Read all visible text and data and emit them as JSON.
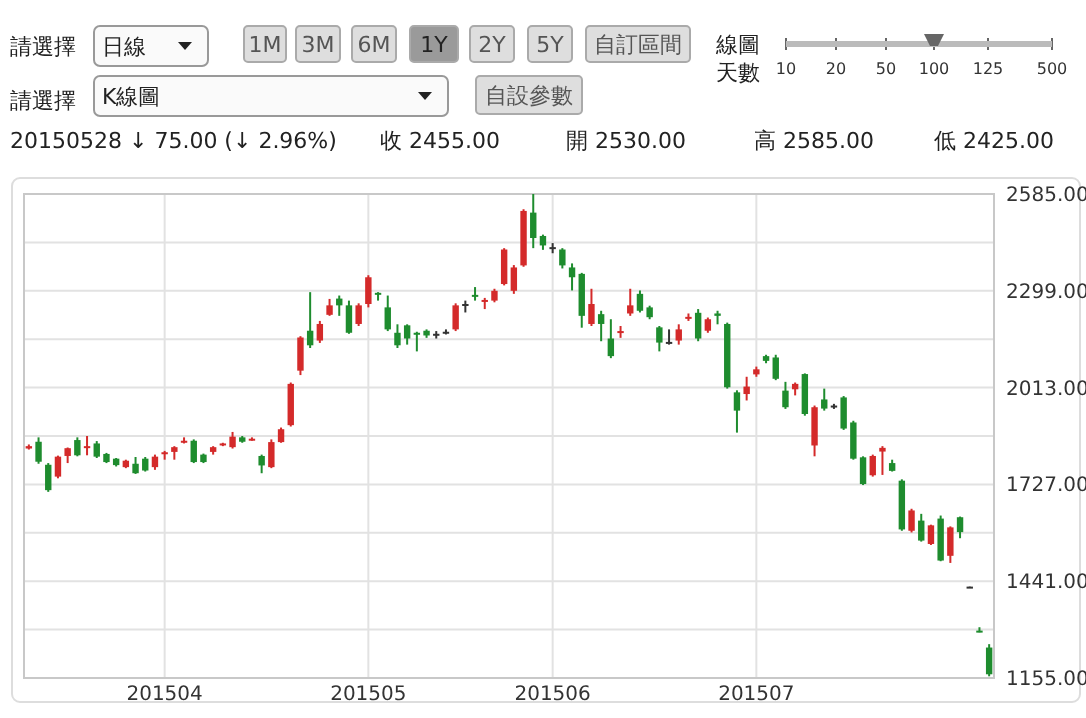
{
  "chart_data": {
    "type": "candlestick",
    "subtitle": "20150528 ↓ 75.00 (↓ 2.96%)",
    "annotations": [
      "請選擇",
      "日線",
      "1M",
      "3M",
      "6M",
      "1Y",
      "2Y",
      "5Y",
      "自訂區間",
      "線圖",
      "天數",
      "10",
      "20",
      "50",
      "100",
      "125",
      "500",
      "請選擇",
      "K線圖",
      "自設參數",
      "收 2455.00",
      "開 2530.00",
      "高 2585.00",
      "低 2425.00"
    ],
    "categories": [
      null,
      null,
      null,
      null,
      null,
      null,
      null,
      null,
      null,
      null,
      null,
      null,
      null,
      null,
      "201504",
      null,
      null,
      null,
      null,
      null,
      null,
      null,
      null,
      null,
      null,
      null,
      null,
      null,
      null,
      null,
      null,
      null,
      null,
      null,
      null,
      "201505",
      null,
      null,
      null,
      null,
      null,
      null,
      null,
      null,
      null,
      null,
      null,
      null,
      null,
      null,
      null,
      null,
      null,
      null,
      "201506",
      null,
      null,
      null,
      null,
      null,
      null,
      null,
      null,
      null,
      null,
      null,
      null,
      null,
      null,
      null,
      null,
      null,
      null,
      null,
      null,
      "201507",
      null,
      null,
      null,
      null,
      null,
      null,
      null,
      null,
      null,
      null,
      null,
      null,
      null,
      null,
      null,
      null,
      null,
      null,
      null,
      null,
      null,
      null,
      null,
      null
    ],
    "ohlc": [
      [
        1833,
        1845,
        1830,
        1840
      ],
      [
        1853,
        1866,
        1788,
        1794
      ],
      [
        1785,
        1790,
        1705,
        1710
      ],
      [
        1750,
        1812,
        1745,
        1809
      ],
      [
        1811,
        1836,
        1790,
        1834
      ],
      [
        1858,
        1866,
        1810,
        1813
      ],
      [
        1835,
        1870,
        1813,
        1840
      ],
      [
        1848,
        1855,
        1805,
        1809
      ],
      [
        1817,
        1820,
        1790,
        1793
      ],
      [
        1803,
        1805,
        1780,
        1784
      ],
      [
        1778,
        1800,
        1775,
        1797
      ],
      [
        1788,
        1808,
        1758,
        1760
      ],
      [
        1803,
        1808,
        1765,
        1768
      ],
      [
        1778,
        1815,
        1770,
        1809
      ],
      [
        1817,
        1826,
        1800,
        1822
      ],
      [
        1823,
        1840,
        1800,
        1837
      ],
      [
        1850,
        1866,
        1848,
        1856
      ],
      [
        1856,
        1860,
        1790,
        1793
      ],
      [
        1815,
        1818,
        1790,
        1793
      ],
      [
        1823,
        1840,
        1815,
        1837
      ],
      [
        1843,
        1850,
        1840,
        1848
      ],
      [
        1837,
        1882,
        1833,
        1868
      ],
      [
        1866,
        1870,
        1850,
        1853
      ],
      [
        1858,
        1866,
        1856,
        1862
      ],
      [
        1811,
        1815,
        1760,
        1783
      ],
      [
        1778,
        1860,
        1775,
        1852
      ],
      [
        1852,
        1895,
        1850,
        1890
      ],
      [
        1902,
        2028,
        1898,
        2024
      ],
      [
        2063,
        2165,
        2050,
        2161
      ],
      [
        2181,
        2295,
        2130,
        2138
      ],
      [
        2152,
        2210,
        2145,
        2201
      ],
      [
        2228,
        2275,
        2225,
        2256
      ],
      [
        2276,
        2285,
        2225,
        2256
      ],
      [
        2256,
        2270,
        2172,
        2175
      ],
      [
        2201,
        2262,
        2195,
        2256
      ],
      [
        2260,
        2345,
        2250,
        2339
      ],
      [
        2293,
        2295,
        2270,
        2289
      ],
      [
        2250,
        2285,
        2180,
        2185
      ],
      [
        2175,
        2200,
        2130,
        2138
      ],
      [
        2197,
        2200,
        2140,
        2158
      ],
      [
        2175,
        2178,
        2120,
        2170
      ],
      [
        2181,
        2185,
        2160,
        2167
      ],
      [
        2172,
        2180,
        2158,
        2172
      ],
      [
        2178,
        2185,
        2170,
        2176
      ],
      [
        2185,
        2262,
        2180,
        2256
      ],
      [
        2260,
        2270,
        2235,
        2260
      ],
      [
        2287,
        2310,
        2270,
        2283
      ],
      [
        2268,
        2278,
        2245,
        2272
      ],
      [
        2270,
        2305,
        2265,
        2299
      ],
      [
        2319,
        2425,
        2315,
        2421
      ],
      [
        2299,
        2375,
        2290,
        2368
      ],
      [
        2374,
        2540,
        2370,
        2535
      ],
      [
        2530,
        2585,
        2425,
        2455
      ],
      [
        2461,
        2465,
        2420,
        2433
      ],
      [
        2428,
        2440,
        2410,
        2426
      ],
      [
        2421,
        2425,
        2365,
        2374
      ],
      [
        2368,
        2380,
        2300,
        2339
      ],
      [
        2349,
        2352,
        2190,
        2225
      ],
      [
        2201,
        2305,
        2195,
        2260
      ],
      [
        2230,
        2240,
        2150,
        2201
      ],
      [
        2158,
        2215,
        2100,
        2106
      ],
      [
        2175,
        2195,
        2160,
        2180
      ],
      [
        2232,
        2305,
        2225,
        2256
      ],
      [
        2290,
        2300,
        2235,
        2240
      ],
      [
        2250,
        2255,
        2215,
        2221
      ],
      [
        2191,
        2195,
        2120,
        2146
      ],
      [
        2148,
        2185,
        2140,
        2146
      ],
      [
        2152,
        2200,
        2140,
        2185
      ],
      [
        2218,
        2232,
        2210,
        2222
      ],
      [
        2234,
        2245,
        2150,
        2158
      ],
      [
        2181,
        2220,
        2175,
        2215
      ],
      [
        2232,
        2240,
        2200,
        2225
      ],
      [
        2201,
        2205,
        2010,
        2014
      ],
      [
        1999,
        2005,
        1880,
        1945
      ],
      [
        1994,
        2045,
        1975,
        2016
      ],
      [
        2052,
        2075,
        2045,
        2067
      ],
      [
        2106,
        2110,
        2085,
        2092
      ],
      [
        2102,
        2110,
        2035,
        2039
      ],
      [
        2004,
        2030,
        1950,
        1955
      ],
      [
        2008,
        2028,
        1990,
        2024
      ],
      [
        2053,
        2055,
        1930,
        1935
      ],
      [
        1842,
        1960,
        1810,
        1955
      ],
      [
        1978,
        2010,
        1945,
        1951
      ],
      [
        1960,
        1965,
        1950,
        1958
      ],
      [
        1984,
        1988,
        1888,
        1892
      ],
      [
        1910,
        1915,
        1800,
        1803
      ],
      [
        1807,
        1810,
        1725,
        1728
      ],
      [
        1754,
        1815,
        1750,
        1811
      ],
      [
        1824,
        1840,
        1755,
        1835
      ],
      [
        1790,
        1800,
        1765,
        1767
      ],
      [
        1738,
        1742,
        1590,
        1594
      ],
      [
        1590,
        1655,
        1585,
        1650
      ],
      [
        1620,
        1640,
        1558,
        1561
      ],
      [
        1551,
        1608,
        1548,
        1606
      ],
      [
        1626,
        1635,
        1500,
        1502
      ],
      [
        1516,
        1603,
        1495,
        1600
      ],
      [
        1630,
        1632,
        1568,
        1586
      ],
      [
        1425,
        1425,
        1421,
        1421
      ],
      [
        1295,
        1305,
        1290,
        1292
      ],
      [
        1245,
        1255,
        1160,
        1166
      ]
    ],
    "colors": [
      "#d42a2a",
      "#1e8c2e",
      "#1e8c2e",
      "#d42a2a",
      "#d42a2a",
      "#1e8c2e",
      "#d42a2a",
      "#1e8c2e",
      "#1e8c2e",
      "#1e8c2e",
      "#d42a2a",
      "#1e8c2e",
      "#1e8c2e",
      "#d42a2a",
      "#d42a2a",
      "#d42a2a",
      "#d42a2a",
      "#1e8c2e",
      "#1e8c2e",
      "#d42a2a",
      "#d42a2a",
      "#d42a2a",
      "#1e8c2e",
      "#d42a2a",
      "#1e8c2e",
      "#d42a2a",
      "#d42a2a",
      "#d42a2a",
      "#d42a2a",
      "#1e8c2e",
      "#d42a2a",
      "#d42a2a",
      "#1e8c2e",
      "#1e8c2e",
      "#d42a2a",
      "#d42a2a",
      "#1e8c2e",
      "#1e8c2e",
      "#1e8c2e",
      "#1e8c2e",
      "#1e8c2e",
      "#1e8c2e",
      "#333333",
      "#333333",
      "#d42a2a",
      "#333333",
      "#1e8c2e",
      "#d42a2a",
      "#d42a2a",
      "#d42a2a",
      "#d42a2a",
      "#d42a2a",
      "#1e8c2e",
      "#1e8c2e",
      "#333333",
      "#1e8c2e",
      "#1e8c2e",
      "#1e8c2e",
      "#d42a2a",
      "#1e8c2e",
      "#1e8c2e",
      "#d42a2a",
      "#d42a2a",
      "#1e8c2e",
      "#1e8c2e",
      "#1e8c2e",
      "#333333",
      "#d42a2a",
      "#d42a2a",
      "#1e8c2e",
      "#d42a2a",
      "#1e8c2e",
      "#1e8c2e",
      "#1e8c2e",
      "#d42a2a",
      "#d42a2a",
      "#1e8c2e",
      "#1e8c2e",
      "#1e8c2e",
      "#d42a2a",
      "#1e8c2e",
      "#d42a2a",
      "#1e8c2e",
      "#333333",
      "#1e8c2e",
      "#1e8c2e",
      "#1e8c2e",
      "#d42a2a",
      "#d42a2a",
      "#1e8c2e",
      "#1e8c2e",
      "#d42a2a",
      "#1e8c2e",
      "#d42a2a",
      "#1e8c2e",
      "#d42a2a",
      "#1e8c2e",
      "#333333",
      "#1e8c2e",
      "#1e8c2e"
    ],
    "ylim": [
      1155,
      2585
    ],
    "yticks": [
      {
        "value": 2585,
        "label": "2585.00"
      },
      {
        "value": 2442,
        "label": null
      },
      {
        "value": 2299,
        "label": "2299.00"
      },
      {
        "value": 2156,
        "label": null
      },
      {
        "value": 2013,
        "label": "2013.00"
      },
      {
        "value": 1870,
        "label": null
      },
      {
        "value": 1727,
        "label": "1727.00"
      },
      {
        "value": 1584,
        "label": null
      },
      {
        "value": 1441,
        "label": "1441.00"
      },
      {
        "value": 1298,
        "label": null
      },
      {
        "value": 1155,
        "label": "1155.00"
      }
    ],
    "grid": true
  }
}
